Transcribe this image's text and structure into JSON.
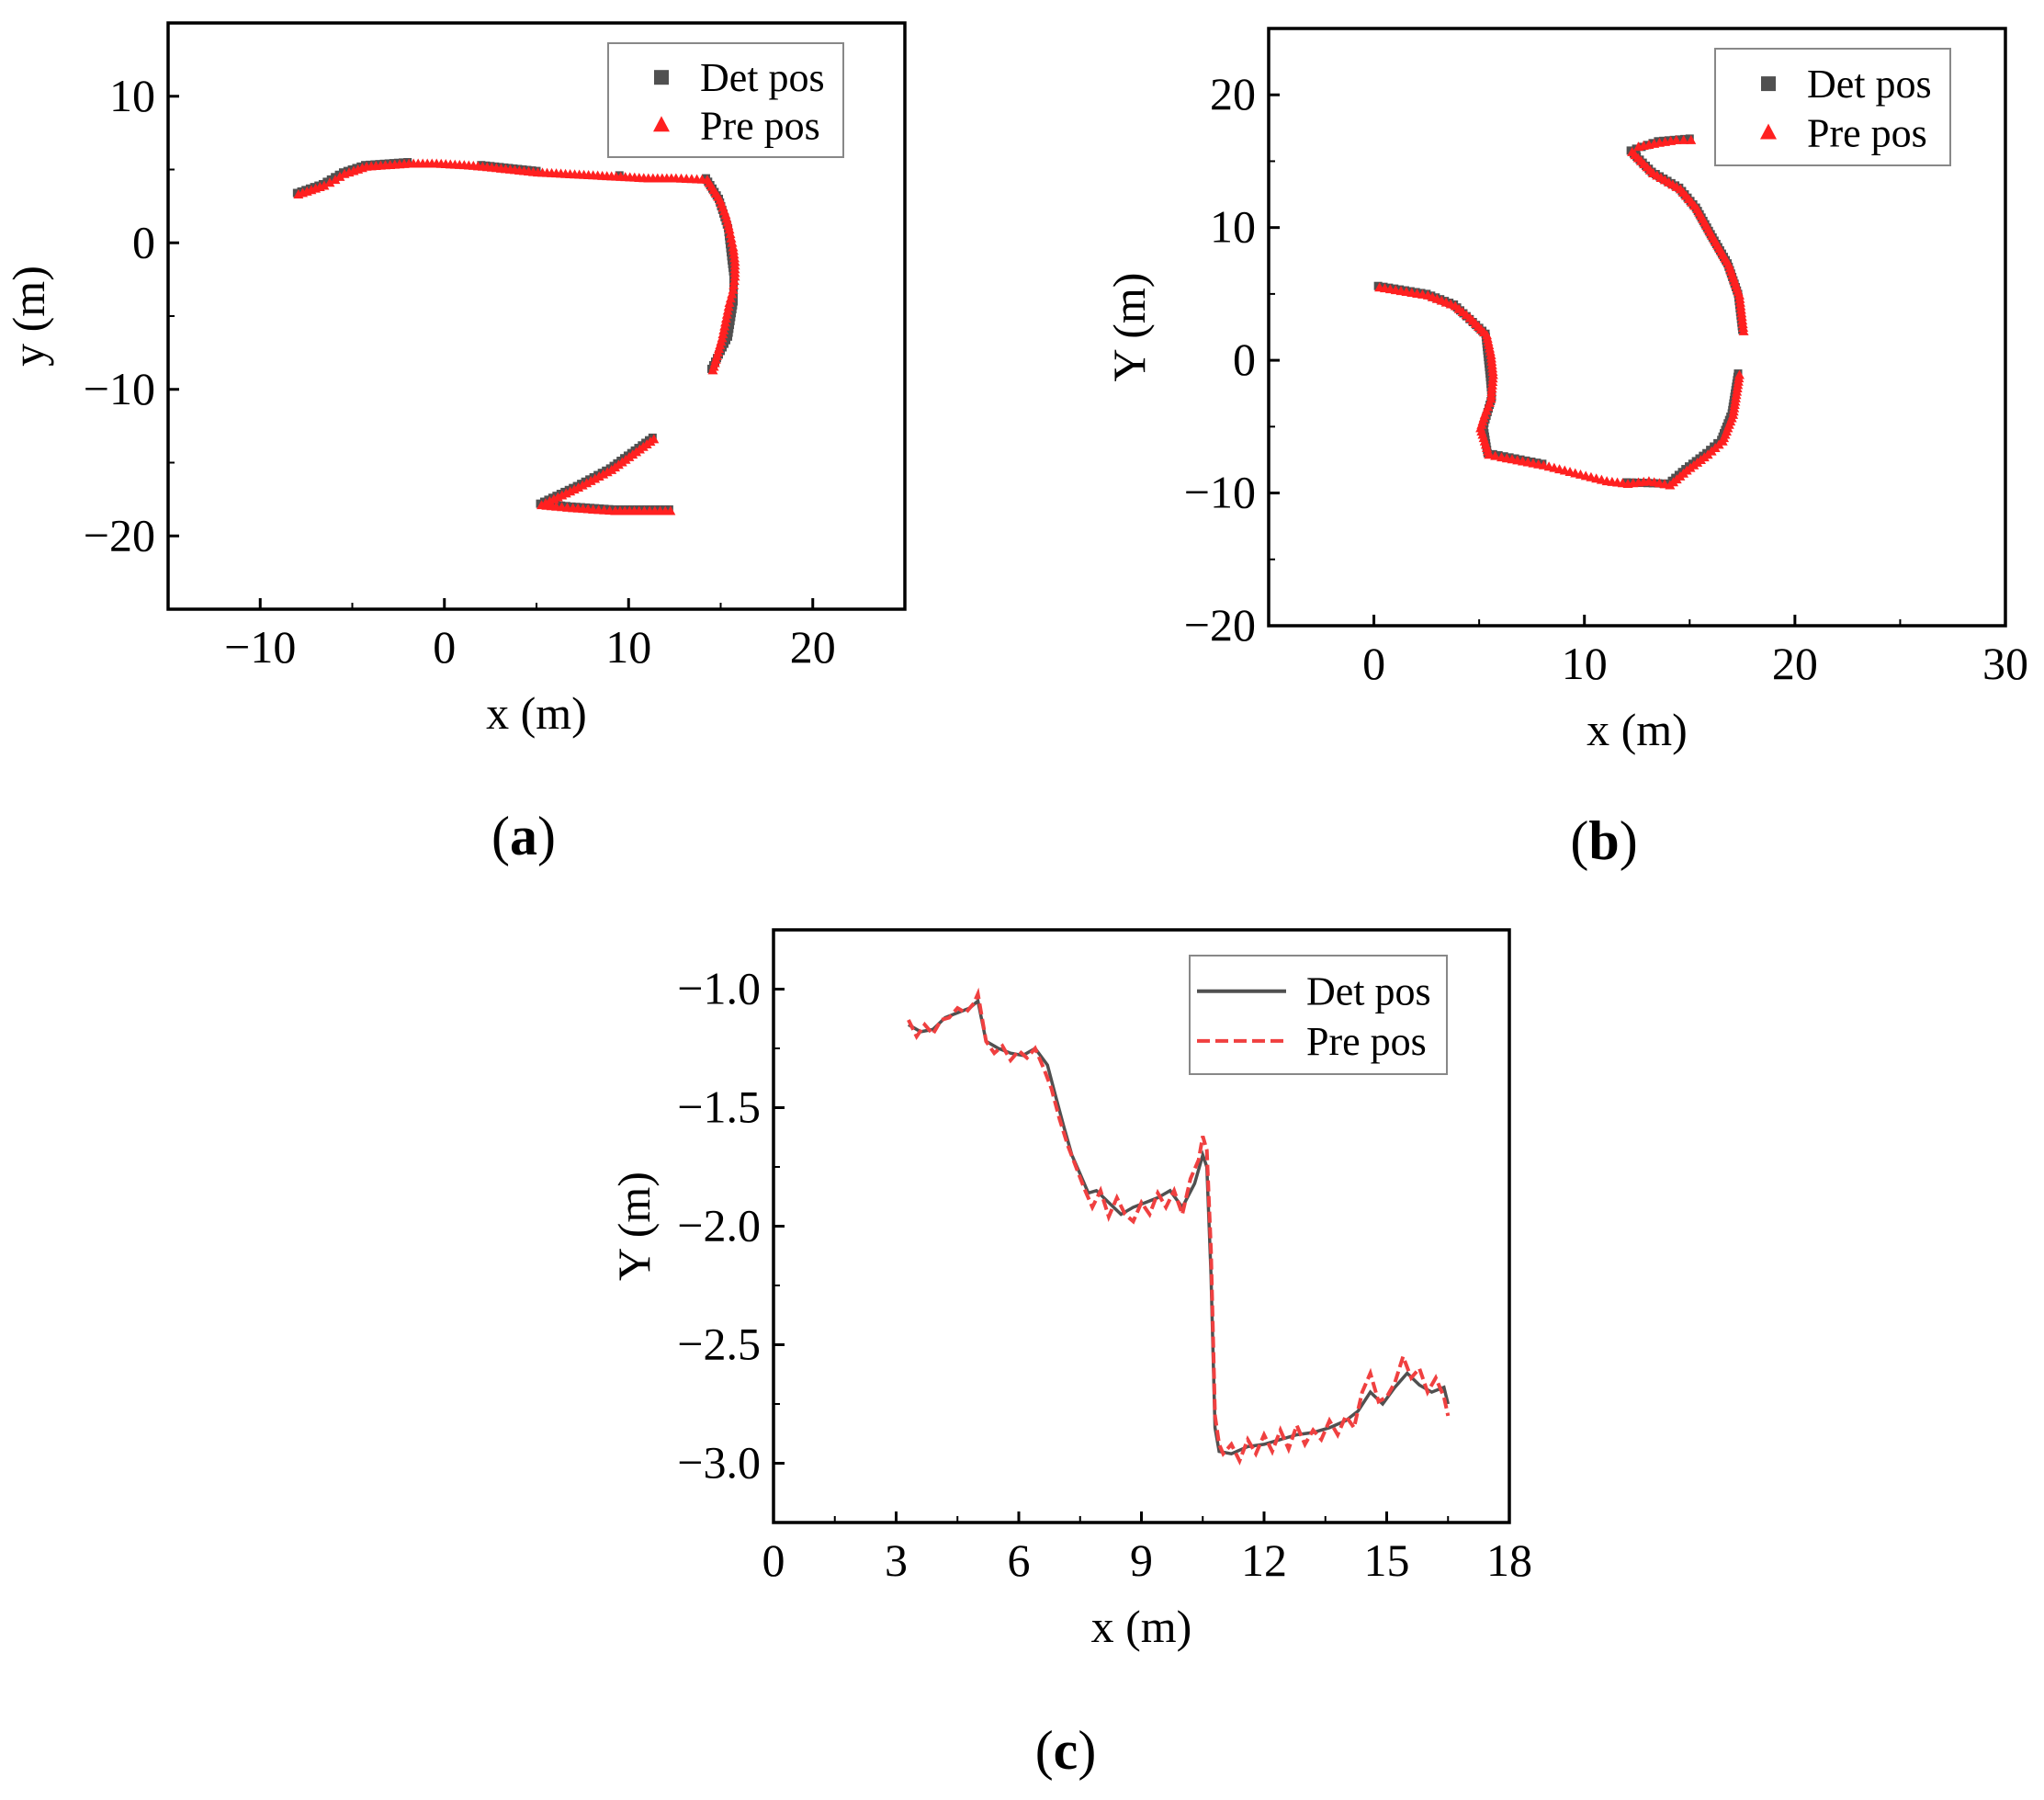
{
  "colors": {
    "det": "#505050",
    "pre": "#ff2020",
    "pre_line": "#f04040",
    "axis": "#000000"
  },
  "chart_data": [
    {
      "type": "scatter",
      "caption": "a",
      "xlabel": "x (m)",
      "ylabel": "y (m)",
      "xlim": [
        -15,
        25
      ],
      "ylim": [
        -25,
        15
      ],
      "xticks": [
        -10,
        0,
        10,
        20
      ],
      "xtick_labels": [
        "−10",
        "0",
        "10",
        "20"
      ],
      "yticks": [
        -20,
        -10,
        0,
        10
      ],
      "ytick_labels": [
        "−20",
        "−10",
        "0",
        "10"
      ],
      "legend": [
        "Det pos",
        "Pre pos"
      ],
      "legend_position": "top-right",
      "series": [
        {
          "name": "Det pos",
          "marker": "square",
          "x": [
            -8.0,
            -6.6,
            -5.5,
            -4.3,
            -2.0,
            2.0,
            5.0,
            9.5,
            14.2,
            14.9,
            15.4,
            15.6,
            15.7,
            15.7,
            15.4,
            14.5,
            11.3,
            9.0,
            7.2,
            5.2,
            6.9,
            9.2,
            12.2
          ],
          "y": [
            3.4,
            4.0,
            4.8,
            5.3,
            5.5,
            5.3,
            4.9,
            4.6,
            4.4,
            3.0,
            1.0,
            -1.2,
            -2.2,
            -4.0,
            -6.4,
            -8.6,
            -13.3,
            -15.4,
            -16.6,
            -17.8,
            -18.0,
            -18.2,
            -18.2
          ]
        },
        {
          "name": "Pre pos",
          "marker": "triangle",
          "x": [
            -8.0,
            -7.3,
            -6.6,
            -6.0,
            -5.5,
            -5.0,
            -4.3,
            -2.0,
            -0.5,
            1.0,
            2.0,
            3.5,
            5.0,
            6.5,
            8.0,
            9.5,
            11.0,
            12.5,
            14.2,
            14.9,
            15.2,
            15.4,
            15.6,
            15.7,
            15.7,
            15.6,
            15.4,
            15.0,
            14.5,
            11.3,
            9.0,
            7.2,
            5.2,
            6.0,
            6.9,
            8.0,
            9.2,
            10.5,
            12.2
          ],
          "y": [
            3.4,
            3.7,
            4.0,
            4.4,
            4.8,
            5.0,
            5.3,
            5.5,
            5.5,
            5.4,
            5.3,
            5.1,
            4.9,
            4.8,
            4.7,
            4.6,
            4.5,
            4.5,
            4.4,
            3.0,
            2.0,
            1.0,
            -0.2,
            -1.2,
            -2.2,
            -3.1,
            -4.0,
            -6.4,
            -8.6,
            -13.3,
            -15.4,
            -16.6,
            -17.8,
            -17.9,
            -18.0,
            -18.1,
            -18.2,
            -18.2,
            -18.2
          ]
        }
      ]
    },
    {
      "type": "scatter",
      "caption": "b",
      "xlabel": "x (m)",
      "ylabel": "Y (m)",
      "xlim": [
        -5,
        30
      ],
      "ylim": [
        -20,
        25
      ],
      "xticks": [
        0,
        10,
        20,
        30
      ],
      "xtick_labels": [
        "0",
        "10",
        "20",
        "30"
      ],
      "yticks": [
        -20,
        -10,
        0,
        10,
        20
      ],
      "ytick_labels": [
        "−20",
        "−10",
        "0",
        "10",
        "20"
      ],
      "legend": [
        "Det pos",
        "Pre pos"
      ],
      "legend_position": "top-right",
      "series": [
        {
          "name": "Det pos",
          "marker": "square",
          "x": [
            0.2,
            2.5,
            3.8,
            5.3,
            5.5,
            5.6,
            5.2,
            5.4,
            8.0,
            12.0,
            14.0,
            14.8,
            15.8,
            16.5,
            17.0,
            17.3,
            17.5,
            17.3,
            16.8,
            16.0,
            15.3,
            14.5,
            13.2,
            12.2,
            13.5,
            15.0
          ],
          "y": [
            5.6,
            5.0,
            4.2,
            2.0,
            -1.0,
            -2.8,
            -5.0,
            -7.0,
            -7.8,
            -9.2,
            -9.3,
            -8.2,
            -7.0,
            -6.0,
            -4.0,
            -1.0,
            2.3,
            5.0,
            7.3,
            9.5,
            11.5,
            13.0,
            14.2,
            15.8,
            16.5,
            16.7
          ]
        },
        {
          "name": "Pre pos",
          "marker": "triangle",
          "x": [
            0.2,
            2.5,
            3.8,
            4.5,
            5.3,
            5.5,
            5.6,
            5.5,
            5.2,
            5.0,
            5.4,
            6.0,
            7.0,
            8.0,
            9.0,
            10.0,
            11.0,
            12.0,
            13.0,
            14.0,
            14.8,
            15.8,
            16.5,
            17.0,
            17.3,
            17.5,
            17.3,
            16.8,
            16.0,
            15.3,
            14.5,
            13.2,
            12.2,
            12.5,
            13.5,
            14.3,
            15.0
          ],
          "y": [
            5.6,
            5.0,
            4.2,
            3.3,
            2.0,
            0.5,
            -1.0,
            -2.8,
            -4.0,
            -5.0,
            -7.0,
            -7.2,
            -7.5,
            -7.8,
            -8.2,
            -8.6,
            -9.0,
            -9.2,
            -9.0,
            -9.3,
            -8.2,
            -7.0,
            -6.0,
            -4.0,
            -1.0,
            2.3,
            5.0,
            7.3,
            9.5,
            11.5,
            13.0,
            14.2,
            15.8,
            16.2,
            16.5,
            16.7,
            16.7
          ]
        }
      ]
    },
    {
      "type": "line",
      "caption": "c",
      "xlabel": "x (m)",
      "ylabel": "Y (m)",
      "xlim": [
        0,
        18
      ],
      "ylim": [
        -3.25,
        -0.75
      ],
      "xticks": [
        0,
        3,
        6,
        9,
        12,
        15,
        18
      ],
      "xtick_labels": [
        "0",
        "3",
        "6",
        "9",
        "12",
        "15",
        "18"
      ],
      "yticks": [
        -1.0,
        -1.5,
        -2.0,
        -2.5,
        -3.0
      ],
      "ytick_labels": [
        "−1.0",
        "−1.5",
        "−2.0",
        "−2.5",
        "−3.0"
      ],
      "legend": [
        "Det pos",
        "Pre pos"
      ],
      "legend_position": "top-right",
      "series": [
        {
          "name": "Det pos",
          "style": "solid",
          "x": [
            3.3,
            3.6,
            3.9,
            4.2,
            4.5,
            4.8,
            5.0,
            5.2,
            5.5,
            5.8,
            6.1,
            6.4,
            6.7,
            6.9,
            7.1,
            7.3,
            7.5,
            7.7,
            7.9,
            8.2,
            8.5,
            8.8,
            9.1,
            9.4,
            9.7,
            10.0,
            10.3,
            10.5,
            10.6,
            10.7,
            10.8,
            10.9,
            11.2,
            11.6,
            12.0,
            12.4,
            12.8,
            13.2,
            13.6,
            14.0,
            14.3,
            14.6,
            14.9,
            15.2,
            15.5,
            15.8,
            16.1,
            16.4,
            16.5
          ],
          "y": [
            -1.15,
            -1.18,
            -1.17,
            -1.12,
            -1.1,
            -1.08,
            -1.05,
            -1.22,
            -1.25,
            -1.27,
            -1.28,
            -1.25,
            -1.32,
            -1.45,
            -1.58,
            -1.7,
            -1.78,
            -1.86,
            -1.85,
            -1.9,
            -1.95,
            -1.92,
            -1.9,
            -1.88,
            -1.85,
            -1.92,
            -1.82,
            -1.7,
            -1.75,
            -2.2,
            -2.85,
            -2.95,
            -2.96,
            -2.93,
            -2.92,
            -2.9,
            -2.88,
            -2.87,
            -2.85,
            -2.82,
            -2.78,
            -2.7,
            -2.75,
            -2.68,
            -2.62,
            -2.67,
            -2.7,
            -2.68,
            -2.75
          ]
        },
        {
          "name": "Pre pos",
          "style": "dashed",
          "x": [
            3.3,
            3.5,
            3.7,
            3.9,
            4.1,
            4.3,
            4.5,
            4.7,
            4.9,
            5.0,
            5.2,
            5.4,
            5.6,
            5.8,
            6.0,
            6.2,
            6.4,
            6.6,
            6.8,
            7.0,
            7.2,
            7.4,
            7.6,
            7.8,
            8.0,
            8.2,
            8.4,
            8.6,
            8.8,
            9.0,
            9.2,
            9.4,
            9.6,
            9.8,
            10.0,
            10.2,
            10.4,
            10.5,
            10.6,
            10.7,
            10.8,
            10.9,
            11.0,
            11.2,
            11.4,
            11.6,
            11.8,
            12.0,
            12.2,
            12.4,
            12.6,
            12.8,
            13.0,
            13.2,
            13.4,
            13.6,
            13.8,
            14.0,
            14.2,
            14.4,
            14.6,
            14.8,
            15.0,
            15.2,
            15.4,
            15.6,
            15.8,
            16.0,
            16.2,
            16.4,
            16.5
          ],
          "y": [
            -1.13,
            -1.2,
            -1.15,
            -1.19,
            -1.13,
            -1.12,
            -1.08,
            -1.1,
            -1.06,
            -1.02,
            -1.22,
            -1.27,
            -1.24,
            -1.3,
            -1.26,
            -1.29,
            -1.25,
            -1.33,
            -1.42,
            -1.55,
            -1.66,
            -1.75,
            -1.84,
            -1.92,
            -1.85,
            -1.96,
            -1.88,
            -1.95,
            -1.98,
            -1.9,
            -1.95,
            -1.86,
            -1.92,
            -1.85,
            -1.95,
            -1.8,
            -1.72,
            -1.62,
            -1.68,
            -2.1,
            -2.8,
            -2.92,
            -2.96,
            -2.92,
            -2.99,
            -2.9,
            -2.96,
            -2.88,
            -2.95,
            -2.86,
            -2.94,
            -2.84,
            -2.92,
            -2.86,
            -2.9,
            -2.82,
            -2.88,
            -2.8,
            -2.85,
            -2.7,
            -2.62,
            -2.74,
            -2.72,
            -2.66,
            -2.55,
            -2.64,
            -2.6,
            -2.7,
            -2.64,
            -2.72,
            -2.8
          ]
        }
      ]
    }
  ]
}
